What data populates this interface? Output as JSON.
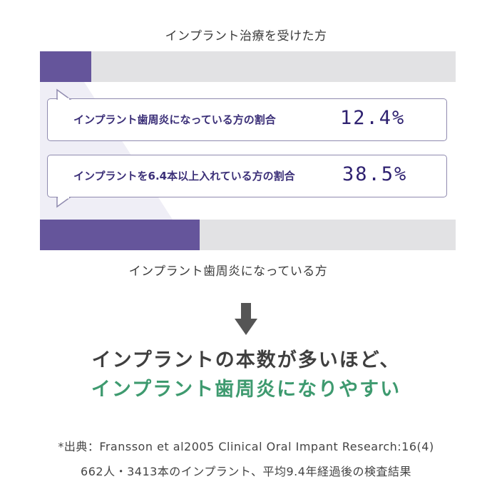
{
  "chart_data": {
    "type": "bar",
    "orientation": "horizontal",
    "unit": "%",
    "xlim": [
      0,
      100
    ],
    "categories": [
      "インプラント治療を受けた方",
      "インプラント歯周炎になっている方"
    ],
    "values": [
      12.4,
      38.5
    ],
    "annotations": [
      {
        "label": "インプラント歯周炎になっている方の割合",
        "value_text": "12.4%"
      },
      {
        "label": "インプラントを6.4本以上入れている方の割合",
        "value_text": "38.5%"
      }
    ]
  },
  "colors": {
    "bar_fill": "#65559b",
    "bar_track": "#e2e2e4",
    "callout_text": "#3b2f78",
    "headline": "#3f3f3f",
    "highlight": "#3e9a6f",
    "arrow": "#555555"
  },
  "icons": {
    "arrow": "arrow-down-icon"
  },
  "conclusion": {
    "line1": "インプラントの本数が多いほど、",
    "line2": "インプラント歯周炎になりやすい"
  },
  "source": {
    "line1": "*出典：Fransson et al2005 Clinical Oral Impant Research:16(4)",
    "line2": "662人・3413本のインプラント、平均9.4年経過後の検査結果"
  }
}
